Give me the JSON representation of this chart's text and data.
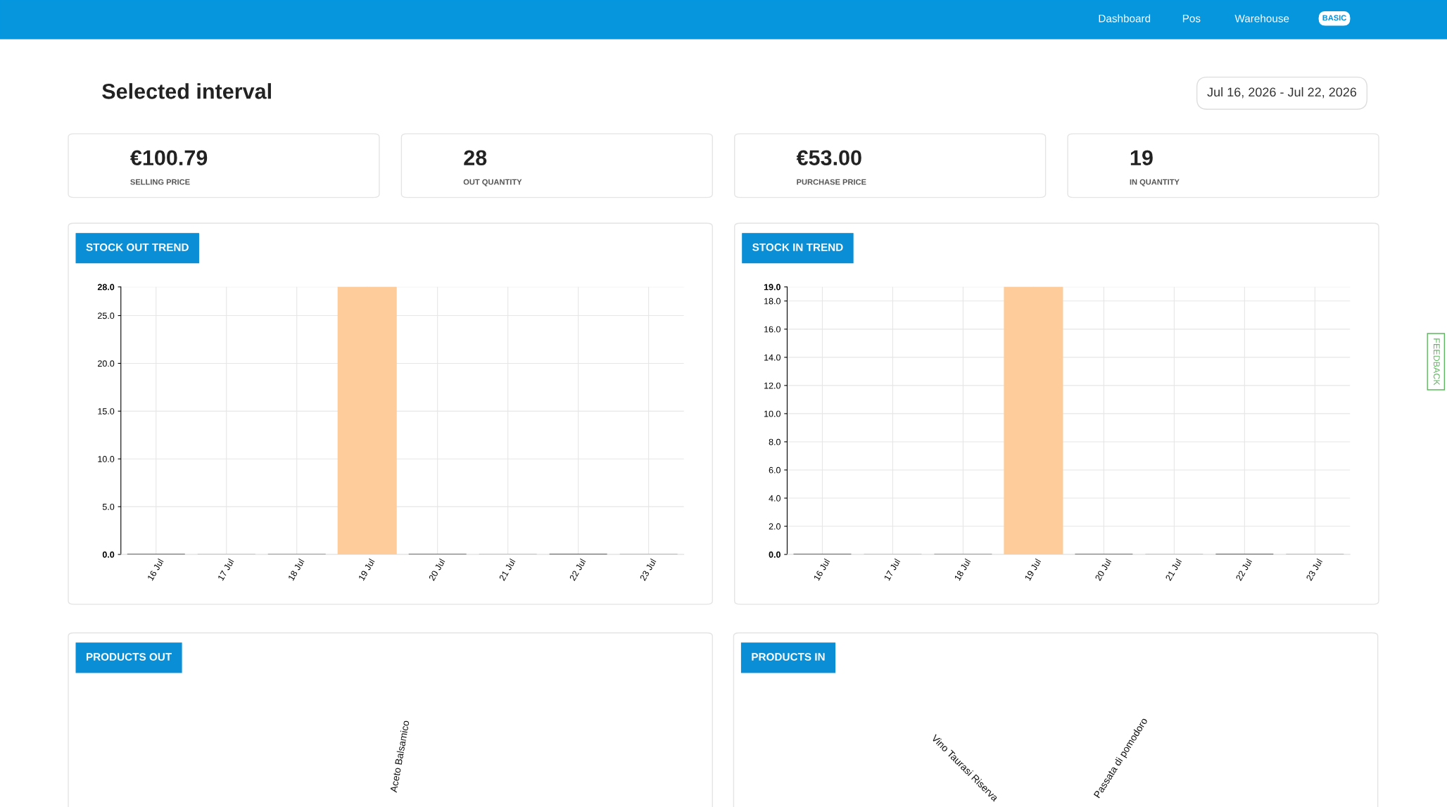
{
  "chart_data": [
    {
      "type": "other",
      "title": "Selected interval",
      "annotations": [
        "Jul 16, 2026 - Jul 22, 2026",
        "€100.79",
        "SELLING PRICE",
        "28",
        "OUT QUANTITY",
        "€53.00",
        "PURCHASE PRICE",
        "19",
        "IN QUANTITY",
        "Dashboard",
        "Pos",
        "Warehouse",
        "BASIC",
        "FEEDBACK"
      ]
    },
    {
      "type": "bar",
      "title": "STOCK OUT TREND",
      "categories": [
        "16 Jul",
        "17 Jul",
        "18 Jul",
        "19 Jul",
        "20 Jul",
        "21 Jul",
        "22 Jul",
        "23 Jul"
      ],
      "values": [
        0,
        0,
        0,
        28,
        0,
        0,
        0,
        0
      ],
      "colors": [
        "#1f77b4",
        "#aec7e8",
        "#ff7f0e",
        "#fdcc9a",
        "#2ca02c",
        "#98df8a",
        "#d62728",
        "#ff9896"
      ],
      "ylim": [
        0,
        28
      ],
      "yticks": [
        {
          "value": 0,
          "label": "0.0"
        },
        {
          "value": 5,
          "label": "5.0"
        },
        {
          "value": 10,
          "label": "10.0"
        },
        {
          "value": 15,
          "label": "15.0"
        },
        {
          "value": 20,
          "label": "20.0"
        },
        {
          "value": 25,
          "label": "25.0"
        },
        {
          "value": 28,
          "label": "28.0"
        }
      ],
      "grid": true
    },
    {
      "type": "bar",
      "title": "STOCK IN TREND",
      "categories": [
        "16 Jul",
        "17 Jul",
        "18 Jul",
        "19 Jul",
        "20 Jul",
        "21 Jul",
        "22 Jul",
        "23 Jul"
      ],
      "values": [
        0,
        0,
        0,
        19,
        0,
        0,
        0,
        0
      ],
      "colors": [
        "#1f77b4",
        "#aec7e8",
        "#ff7f0e",
        "#fdcc9a",
        "#2ca02c",
        "#98df8a",
        "#d62728",
        "#ff9896"
      ],
      "ylim": [
        0,
        19
      ],
      "yticks": [
        {
          "value": 0,
          "label": "0.0"
        },
        {
          "value": 2,
          "label": "2.0"
        },
        {
          "value": 4,
          "label": "4.0"
        },
        {
          "value": 6,
          "label": "6.0"
        },
        {
          "value": 8,
          "label": "8.0"
        },
        {
          "value": 10,
          "label": "10.0"
        },
        {
          "value": 12,
          "label": "12.0"
        },
        {
          "value": 14,
          "label": "14.0"
        },
        {
          "value": 16,
          "label": "16.0"
        },
        {
          "value": 18,
          "label": "18.0"
        },
        {
          "value": 19,
          "label": "19.0"
        }
      ],
      "grid": true
    },
    {
      "type": "other",
      "title": "PRODUCTS OUT",
      "annotations": [
        "Aceto Balsamico"
      ]
    },
    {
      "type": "other",
      "title": "PRODUCTS IN",
      "annotations": [
        "Vino Taurasi Riserva",
        "Passata di pomodoro"
      ]
    }
  ]
}
